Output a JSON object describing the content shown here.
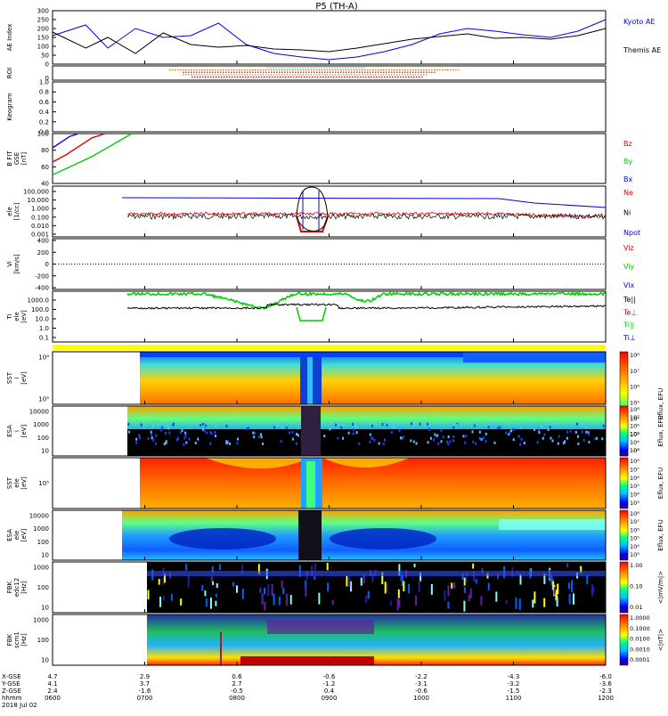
{
  "title": "P5 (TH-A)",
  "colors": {
    "red": "#e00000",
    "green": "#00cc00",
    "blue": "#0000ee",
    "black": "#000000",
    "cyan": "#00bbee",
    "orange": "#ee6600",
    "dkred": "#aa0000"
  },
  "chart_data": [
    {
      "type": "line",
      "panel": "ae",
      "ylabel": "AE Index",
      "yticks": [
        "0",
        "50",
        "100",
        "150",
        "200",
        "250",
        "300"
      ],
      "ylim": [
        0,
        300
      ],
      "x": [
        0,
        0.06,
        0.1,
        0.15,
        0.2,
        0.25,
        0.3,
        0.35,
        0.4,
        0.45,
        0.5,
        0.55,
        0.6,
        0.65,
        0.7,
        0.75,
        0.8,
        0.85,
        0.9,
        0.95,
        1
      ],
      "series": [
        {
          "name": "Kyoto AE",
          "color": "blue",
          "values": [
            160,
            220,
            90,
            200,
            150,
            160,
            230,
            110,
            60,
            40,
            25,
            40,
            70,
            110,
            170,
            200,
            185,
            165,
            150,
            185,
            250
          ]
        },
        {
          "name": "Themis AE",
          "color": "black",
          "values": [
            180,
            90,
            150,
            60,
            175,
            110,
            95,
            105,
            85,
            80,
            70,
            90,
            115,
            140,
            155,
            170,
            145,
            150,
            140,
            160,
            200
          ]
        }
      ]
    },
    {
      "type": "table",
      "panel": "roi",
      "ylabel": "ROI",
      "yticks": [
        "0"
      ]
    },
    {
      "type": "heatmap",
      "panel": "keogram",
      "ylabel": "Keogram",
      "yticks": [
        "0.0",
        "0.2",
        "0.4",
        "0.6",
        "0.8",
        "1.0"
      ],
      "ylim": [
        0,
        1
      ]
    },
    {
      "type": "line",
      "panel": "bfield",
      "ylabel_lines": [
        "B FIT",
        "GSE",
        "[nT]"
      ],
      "yticks": [
        "40",
        "60",
        "80",
        "100"
      ],
      "ylim": [
        30,
        100
      ],
      "series": [
        {
          "name": "Bz",
          "color": "red",
          "values": [
            60,
            70,
            82,
            94,
            100
          ]
        },
        {
          "name": "By",
          "color": "green",
          "values": [
            42,
            55,
            68,
            84,
            100
          ]
        },
        {
          "name": "Bx",
          "color": "blue",
          "values": [
            80,
            88,
            96,
            100
          ]
        }
      ]
    },
    {
      "type": "line",
      "panel": "density",
      "ylabel_lines": [
        "ele",
        "[1/cc]"
      ],
      "yticks": [
        "0.001",
        "0.010",
        "0.100",
        "1.000",
        "10.000",
        "100.000"
      ],
      "ylim": [
        0.001,
        1000
      ],
      "yscale": "log",
      "series": [
        {
          "name": "Ne",
          "color": "red"
        },
        {
          "name": "Ni",
          "color": "black"
        },
        {
          "name": "Npot",
          "color": "blue"
        }
      ]
    },
    {
      "type": "line",
      "panel": "velocity",
      "ylabel_lines": [
        "Vi",
        "[km/s]"
      ],
      "yticks": [
        "-400",
        "-200",
        "0",
        "200",
        "400"
      ],
      "ylim": [
        -400,
        400
      ],
      "series": [
        {
          "name": "Viz",
          "color": "red"
        },
        {
          "name": "Viy",
          "color": "green"
        },
        {
          "name": "Vix",
          "color": "blue"
        }
      ]
    },
    {
      "type": "line",
      "panel": "temperature",
      "ylabel_lines": [
        "Ti",
        "ele",
        "[eV]"
      ],
      "yticks": [
        "0.1",
        "1.0",
        "10.0",
        "100.0",
        "1000.0"
      ],
      "ylim": [
        0.1,
        5000
      ],
      "yscale": "log",
      "series": [
        {
          "name": "Te||",
          "color": "black"
        },
        {
          "name": "Te⊥",
          "color": "red"
        },
        {
          "name": "Ti||",
          "color": "green"
        },
        {
          "name": "Ti⊥",
          "color": "blue"
        }
      ]
    },
    {
      "type": "heatmap",
      "panel": "sst_ion",
      "ylabel_lines": [
        "SST",
        "i",
        "[eV]"
      ],
      "yticks": [
        "10⁵",
        "10⁴"
      ],
      "colorbar": {
        "label": "Eflux, EFU",
        "ticks": [
          "10⁸",
          "10⁷",
          "10⁶",
          "10⁵",
          "10⁴",
          "10³",
          "10²"
        ]
      }
    },
    {
      "type": "heatmap",
      "panel": "esa_ion",
      "ylabel_lines": [
        "ESA",
        "i",
        "[eV]"
      ],
      "yticks": [
        "10",
        "100",
        "1000",
        "10000"
      ],
      "colorbar": {
        "label": "Eflux, EFU",
        "ticks": [
          "10⁸",
          "10⁷",
          "10⁶",
          "10⁵",
          "10⁴",
          "10³"
        ]
      }
    },
    {
      "type": "heatmap",
      "panel": "sst_ele",
      "ylabel_lines": [
        "SST",
        "ele",
        "[eV]"
      ],
      "yticks": [
        "10⁵"
      ],
      "colorbar": {
        "label": "Eflux, EFU",
        "ticks": [
          "10⁸",
          "10⁷",
          "10⁶",
          "10⁵",
          "10⁴",
          "10³"
        ]
      }
    },
    {
      "type": "heatmap",
      "panel": "esa_ele",
      "ylabel_lines": [
        "ESA",
        "ele",
        "[eV]"
      ],
      "yticks": [
        "10",
        "100",
        "1000",
        "10000"
      ],
      "colorbar": {
        "label": "Eflux, EFU",
        "ticks": [
          "10⁸",
          "10⁷",
          "10⁶",
          "10⁵",
          "10⁴",
          "10³"
        ]
      }
    },
    {
      "type": "heatmap",
      "panel": "fbk_e",
      "ylabel_lines": [
        "FBK",
        "edc12",
        "[Hz]"
      ],
      "yticks": [
        "10",
        "100",
        "1000"
      ],
      "colorbar": {
        "label": "<|mV/m|>",
        "ticks": [
          "1.00",
          "0.10",
          "0.01"
        ]
      }
    },
    {
      "type": "heatmap",
      "panel": "fbk_b",
      "ylabel_lines": [
        "FBK",
        "scm1",
        "[Hz]"
      ],
      "yticks": [
        "10",
        "100",
        "1000"
      ],
      "colorbar": {
        "label": "<|nT|>",
        "ticks": [
          "1.0000",
          "0.1000",
          "0.0100",
          "0.0010",
          "0.0001"
        ]
      }
    }
  ],
  "time_axis": {
    "row_labels": [
      "X-GSE",
      "Y-GSE",
      "Z-GSE",
      "hhmm",
      "2018 Jul 02"
    ],
    "columns": [
      {
        "x": "4.7",
        "y": "4.1",
        "z": "2.4",
        "t": "0600"
      },
      {
        "x": "2.9",
        "y": "3.7",
        "z": "-1.6",
        "t": "0700"
      },
      {
        "x": "0.6",
        "y": "2.7",
        "z": "-0.5",
        "t": "0800"
      },
      {
        "x": "-0.6",
        "y": "-1.2",
        "z": "0.4",
        "t": "0900"
      },
      {
        "x": "-2.2",
        "y": "-3.1",
        "z": "-0.6",
        "t": "1000"
      },
      {
        "x": "-4.3",
        "y": "-3.2",
        "z": "-1.5",
        "t": "1100"
      },
      {
        "x": "-6.0",
        "y": "-3.6",
        "z": "-2.3",
        "t": "1200"
      }
    ]
  }
}
